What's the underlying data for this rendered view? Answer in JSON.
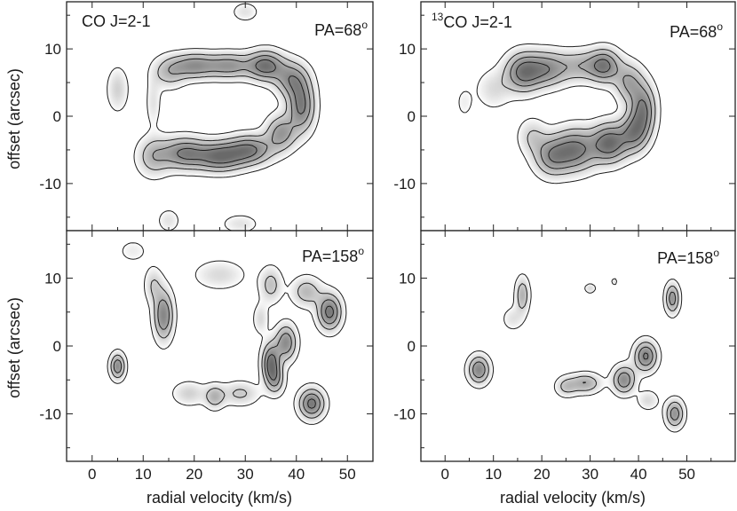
{
  "chart_data": [
    {
      "type": "contour",
      "panel": "top-left",
      "label_left": "CO J=2-1",
      "label_right": "PA=68°",
      "xlim": [
        -5,
        55
      ],
      "ylim": [
        -17,
        17
      ],
      "xticks": [
        0,
        10,
        20,
        30,
        40,
        50
      ],
      "yticks": [
        10,
        0,
        -10
      ],
      "show_x_tick_labels": false,
      "show_y_tick_labels": true,
      "ylabel": "offset (arcsec)",
      "xlabel": "",
      "features": [
        {
          "v": 12,
          "o": -6,
          "sv": 2.2,
          "so": 2.0,
          "a": 0.5
        },
        {
          "v": 18,
          "o": -5.5,
          "sv": 3.0,
          "so": 1.6,
          "a": 0.85
        },
        {
          "v": 25,
          "o": -6,
          "sv": 3.2,
          "so": 1.5,
          "a": 0.95
        },
        {
          "v": 31,
          "o": -5,
          "sv": 3.0,
          "so": 1.5,
          "a": 0.85
        },
        {
          "v": 37,
          "o": -2.5,
          "sv": 2.0,
          "so": 1.8,
          "a": 0.7
        },
        {
          "v": 41,
          "o": 1.5,
          "sv": 1.8,
          "so": 2.6,
          "a": 0.9
        },
        {
          "v": 39,
          "o": 5.5,
          "sv": 2.2,
          "so": 1.8,
          "a": 0.7
        },
        {
          "v": 34,
          "o": 7.5,
          "sv": 2.4,
          "so": 1.5,
          "a": 0.95
        },
        {
          "v": 27,
          "o": 7.5,
          "sv": 3.0,
          "so": 1.3,
          "a": 0.7
        },
        {
          "v": 20,
          "o": 7.5,
          "sv": 3.0,
          "so": 1.3,
          "a": 0.75
        },
        {
          "v": 15,
          "o": 6.5,
          "sv": 2.2,
          "so": 1.6,
          "a": 0.45
        },
        {
          "v": 5,
          "o": 4,
          "sv": 1.4,
          "so": 2.2,
          "a": 0.35
        },
        {
          "v": 12,
          "o": 2,
          "sv": 1.0,
          "so": 2.5,
          "a": 0.25
        },
        {
          "v": 30,
          "o": 15.5,
          "sv": 1.8,
          "so": 1.0,
          "a": 0.25
        },
        {
          "v": 15,
          "o": -15.5,
          "sv": 1.5,
          "so": 1.2,
          "a": 0.25
        },
        {
          "v": 29,
          "o": -16,
          "sv": 2.5,
          "so": 1.0,
          "a": 0.25
        }
      ]
    },
    {
      "type": "contour",
      "panel": "top-right",
      "label_left_sup": "13",
      "label_left": "CO J=2-1",
      "label_right": "PA=68°",
      "xlim": [
        -5,
        60
      ],
      "ylim": [
        -17,
        17
      ],
      "xticks": [
        0,
        10,
        20,
        30,
        40,
        50
      ],
      "yticks": [
        10,
        0,
        -10
      ],
      "show_x_tick_labels": false,
      "show_y_tick_labels": true,
      "ylabel": "",
      "xlabel": "",
      "features": [
        {
          "v": 16,
          "o": 6.5,
          "sv": 2.5,
          "so": 2.0,
          "a": 0.85
        },
        {
          "v": 21,
          "o": 7,
          "sv": 3.0,
          "so": 1.8,
          "a": 0.75
        },
        {
          "v": 28,
          "o": 7.5,
          "sv": 3.0,
          "so": 1.6,
          "a": 0.5
        },
        {
          "v": 33,
          "o": 7.5,
          "sv": 2.2,
          "so": 1.7,
          "a": 0.85
        },
        {
          "v": 38,
          "o": 5,
          "sv": 2.0,
          "so": 2.0,
          "a": 0.6
        },
        {
          "v": 41,
          "o": 1,
          "sv": 1.8,
          "so": 2.6,
          "a": 0.85
        },
        {
          "v": 39,
          "o": -2.5,
          "sv": 2.0,
          "so": 2.0,
          "a": 0.75
        },
        {
          "v": 34,
          "o": -4,
          "sv": 2.5,
          "so": 2.0,
          "a": 1.0
        },
        {
          "v": 27,
          "o": -5,
          "sv": 3.0,
          "so": 2.2,
          "a": 0.9
        },
        {
          "v": 22,
          "o": -6,
          "sv": 2.5,
          "so": 2.0,
          "a": 0.7
        },
        {
          "v": 18,
          "o": -3,
          "sv": 2.0,
          "so": 1.8,
          "a": 0.35
        },
        {
          "v": 10,
          "o": 4,
          "sv": 2.5,
          "so": 2.0,
          "a": 0.28
        },
        {
          "v": 4,
          "o": 2,
          "sv": 1.2,
          "so": 1.6,
          "a": 0.18
        }
      ]
    },
    {
      "type": "contour",
      "panel": "bottom-left",
      "label_right": "PA=158°",
      "xlim": [
        -5,
        55
      ],
      "ylim": [
        -17,
        17
      ],
      "xticks": [
        0,
        10,
        20,
        30,
        40,
        50
      ],
      "yticks": [
        10,
        0,
        -10
      ],
      "show_x_tick_labels": true,
      "show_y_tick_labels": true,
      "ylabel": "offset (arcsec)",
      "xlabel": "radial velocity (km/s)",
      "features": [
        {
          "v": 5,
          "o": -3,
          "sv": 1.0,
          "so": 1.3,
          "a": 0.8
        },
        {
          "v": 14,
          "o": 4.5,
          "sv": 1.3,
          "so": 2.5,
          "a": 0.85
        },
        {
          "v": 12,
          "o": 9,
          "sv": 1.2,
          "so": 1.8,
          "a": 0.35
        },
        {
          "v": 35,
          "o": -2.5,
          "sv": 1.2,
          "so": 2.0,
          "a": 0.95
        },
        {
          "v": 38,
          "o": 0.5,
          "sv": 1.4,
          "so": 1.8,
          "a": 0.8
        },
        {
          "v": 36,
          "o": -5,
          "sv": 1.2,
          "so": 1.5,
          "a": 0.5
        },
        {
          "v": 43,
          "o": -8.5,
          "sv": 1.7,
          "so": 1.5,
          "a": 0.95
        },
        {
          "v": 46.5,
          "o": 5,
          "sv": 1.6,
          "so": 1.8,
          "a": 0.95
        },
        {
          "v": 42,
          "o": 8,
          "sv": 2.0,
          "so": 1.5,
          "a": 0.5
        },
        {
          "v": 35,
          "o": 9,
          "sv": 1.5,
          "so": 1.8,
          "a": 0.45
        },
        {
          "v": 24,
          "o": -7.5,
          "sv": 1.3,
          "so": 1.2,
          "a": 0.5
        },
        {
          "v": 29,
          "o": -7,
          "sv": 2.5,
          "so": 1.2,
          "a": 0.4
        },
        {
          "v": 19,
          "o": -7,
          "sv": 2.2,
          "so": 1.2,
          "a": 0.35
        },
        {
          "v": 25,
          "o": 10.5,
          "sv": 3.5,
          "so": 1.5,
          "a": 0.3
        },
        {
          "v": 33,
          "o": 4,
          "sv": 1.0,
          "so": 1.5,
          "a": 0.3
        },
        {
          "v": 8,
          "o": 14,
          "sv": 2.0,
          "so": 1.2,
          "a": 0.2
        }
      ]
    },
    {
      "type": "contour",
      "panel": "bottom-right",
      "label_right": "PA=158°",
      "xlim": [
        -5,
        60
      ],
      "ylim": [
        -17,
        17
      ],
      "xticks": [
        0,
        10,
        20,
        30,
        40,
        50
      ],
      "yticks": [
        10,
        0,
        -10
      ],
      "show_x_tick_labels": true,
      "show_y_tick_labels": true,
      "ylabel": "",
      "xlabel": "radial velocity (km/s)",
      "features": [
        {
          "v": 7,
          "o": -3.5,
          "sv": 1.5,
          "so": 1.4,
          "a": 0.85
        },
        {
          "v": 16,
          "o": 7.5,
          "sv": 1.0,
          "so": 1.8,
          "a": 0.55
        },
        {
          "v": 14,
          "o": 4,
          "sv": 1.5,
          "so": 1.2,
          "a": 0.25
        },
        {
          "v": 29,
          "o": -5.5,
          "sv": 2.2,
          "so": 1.0,
          "a": 0.6
        },
        {
          "v": 25,
          "o": -6,
          "sv": 1.5,
          "so": 1.0,
          "a": 0.4
        },
        {
          "v": 37,
          "o": -5,
          "sv": 1.6,
          "so": 1.4,
          "a": 0.8
        },
        {
          "v": 41.5,
          "o": -1.5,
          "sv": 1.6,
          "so": 1.5,
          "a": 0.9
        },
        {
          "v": 47,
          "o": 7,
          "sv": 1.0,
          "so": 1.5,
          "a": 0.75
        },
        {
          "v": 47.5,
          "o": -10,
          "sv": 1.3,
          "so": 1.4,
          "a": 0.75
        },
        {
          "v": 42,
          "o": -8,
          "sv": 1.5,
          "so": 1.0,
          "a": 0.3
        },
        {
          "v": 30,
          "o": 8.5,
          "sv": 0.8,
          "so": 0.5,
          "a": 0.3
        },
        {
          "v": 35,
          "o": 9.5,
          "sv": 0.4,
          "so": 0.4,
          "a": 0.25
        }
      ]
    }
  ]
}
